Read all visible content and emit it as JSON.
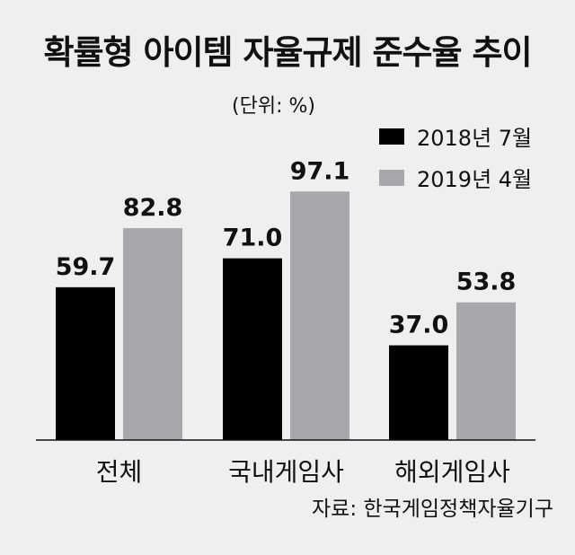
{
  "chart_data": {
    "type": "bar",
    "title": "확률형 아이템 자율규제 준수율 추이",
    "unit_label": "(단위: %)",
    "categories": [
      "전체",
      "국내게임사",
      "해외게임사"
    ],
    "series": [
      {
        "name": "2018년 7월",
        "color": "#000000",
        "values": [
          59.7,
          71.0,
          37.0
        ],
        "labels": [
          "59.7",
          "71.0",
          "37.0"
        ]
      },
      {
        "name": "2019년 4월",
        "color": "#a6a8ab",
        "values": [
          82.8,
          97.1,
          53.8
        ],
        "labels": [
          "82.8",
          "97.1",
          "53.8"
        ]
      }
    ],
    "ylim": [
      0,
      100
    ],
    "legend": "top-right",
    "grid": false,
    "source": "자료: 한국게임정책자율기구"
  }
}
